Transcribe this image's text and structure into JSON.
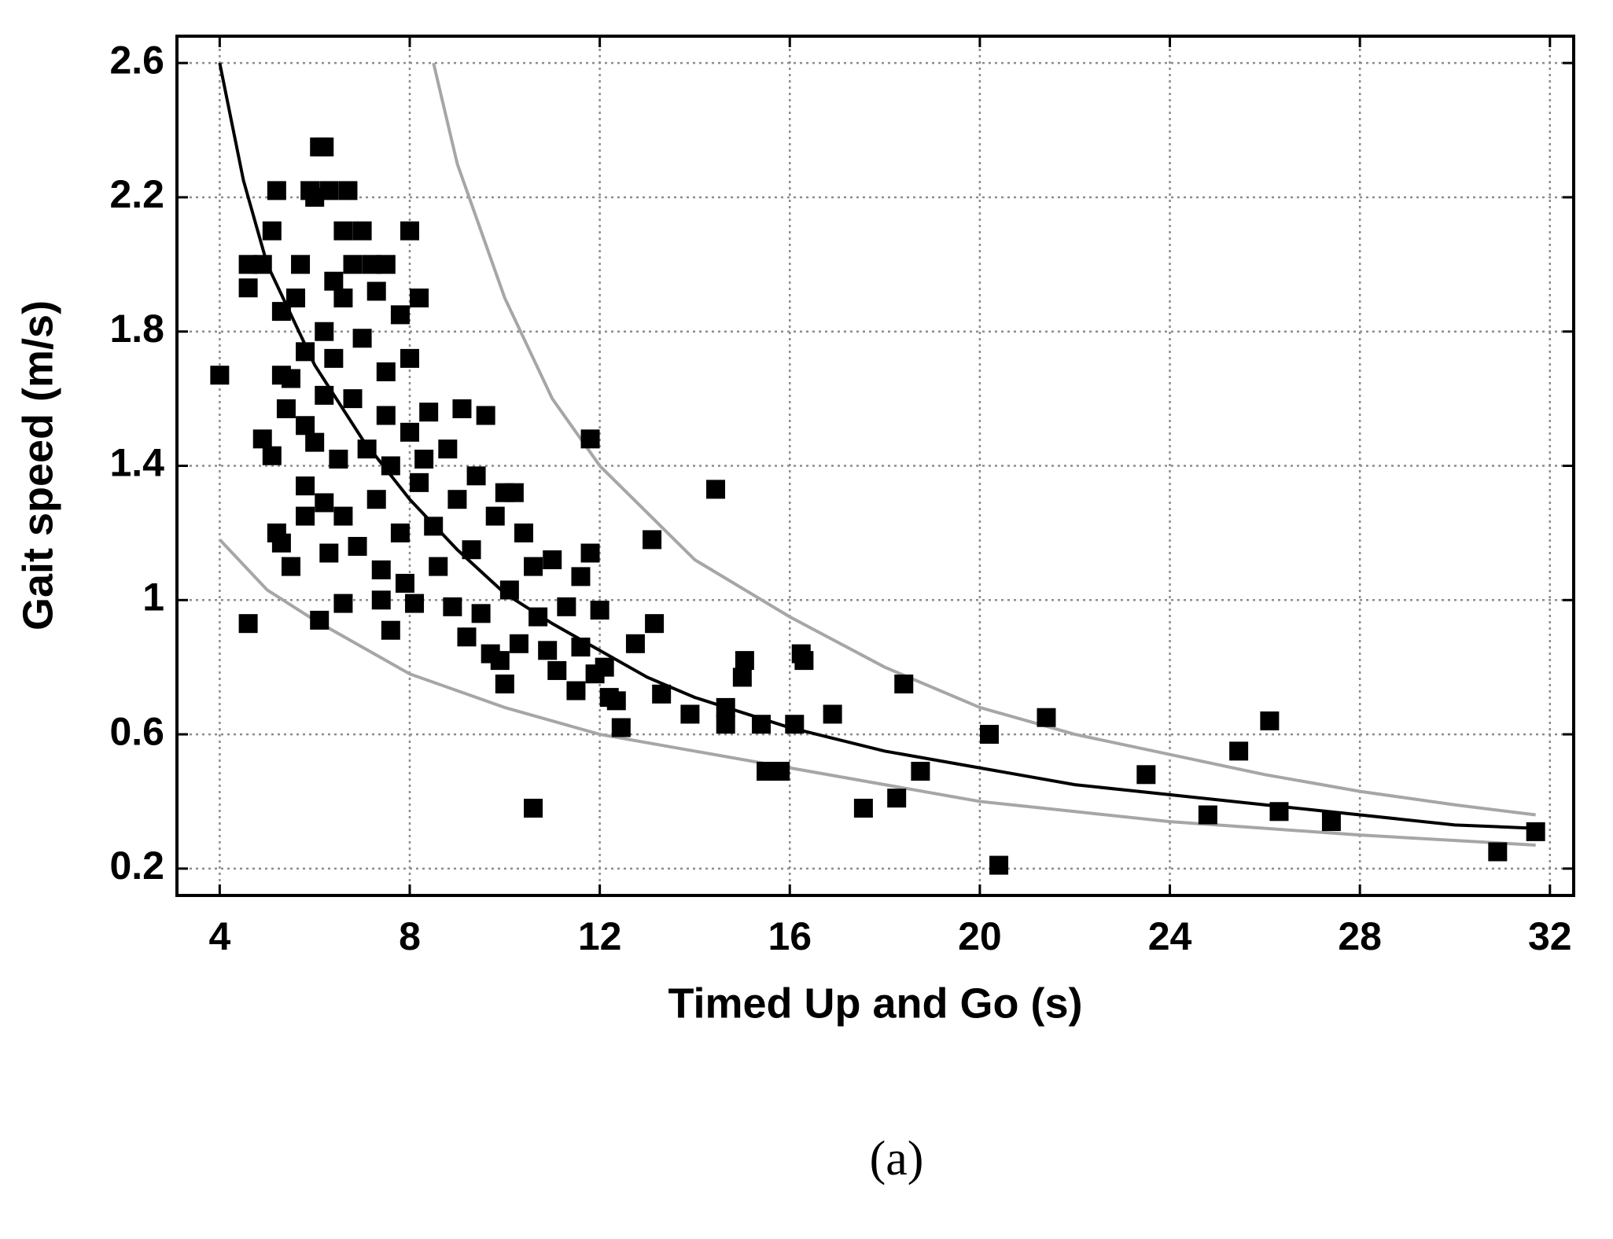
{
  "chart_data": {
    "type": "scatter",
    "xlabel": "Timed Up and Go (s)",
    "ylabel": "Gait speed (m/s)",
    "caption": "(a)",
    "xlim": [
      3.1,
      32.5
    ],
    "ylim": [
      0.12,
      2.68
    ],
    "xticks": [
      4,
      8,
      12,
      16,
      20,
      24,
      28,
      32
    ],
    "yticks": [
      0.2,
      0.6,
      1,
      1.4,
      1.8,
      2.2,
      2.6
    ],
    "grid": true,
    "series": [
      {
        "type": "scatter",
        "marker": "square",
        "color": "#000000",
        "x": [
          4,
          4.6,
          4.6,
          4.6,
          4.9,
          4.9,
          5.1,
          5.1,
          5.2,
          5.2,
          5.3,
          5.3,
          5.3,
          5.4,
          5.5,
          5.5,
          5.6,
          5.7,
          5.8,
          5.8,
          5.8,
          5.8,
          5.9,
          6.0,
          6.0,
          6.1,
          6.2,
          6.2,
          6.2,
          6.2,
          6.3,
          6.3,
          6.4,
          6.4,
          6.1,
          6.5,
          6.6,
          6.6,
          6.6,
          6.7,
          6.8,
          6.8,
          6.9,
          7.0,
          7.0,
          7.1,
          6.6,
          7.2,
          7.3,
          7.3,
          7.4,
          7.5,
          7.5,
          7.5,
          7.4,
          7.6,
          8.0,
          7.8,
          7.8,
          7.9,
          8.0,
          8.0,
          8.1,
          8.2,
          8.2,
          7.6,
          8.4,
          8.5,
          8.6,
          8.3,
          8.8,
          8.9,
          9.0,
          9.1,
          9.2,
          9.3,
          9.4,
          9.5,
          9.6,
          9.7,
          9.8,
          9.9,
          10.0,
          10.1,
          10.2,
          10.3,
          10.4,
          10.0,
          10.6,
          10.7,
          10.9,
          11.0,
          11.1,
          11.3,
          11.5,
          11.6,
          11.8,
          11.9,
          12.0,
          11.6,
          12.2,
          11.8,
          12.1,
          12.75,
          12.35,
          12.45,
          13.15,
          13.1,
          13.3,
          13.9,
          14.44,
          14.65,
          14.65,
          15.0,
          15.05,
          15.4,
          15.5,
          15.8,
          16.1,
          16.24,
          16.3,
          16.9,
          10.6,
          17.55,
          18.25,
          18.4,
          18.75,
          20.2,
          20.4,
          21.4,
          23.5,
          24.8,
          25.45,
          26.1,
          26.3,
          27.4,
          30.9,
          31.7
        ],
        "values": [
          1.67,
          0.93,
          1.93,
          2.0,
          2.0,
          1.48,
          2.1,
          1.43,
          2.22,
          1.2,
          1.17,
          1.86,
          1.67,
          1.57,
          1.66,
          1.1,
          1.9,
          2.0,
          1.74,
          1.52,
          1.34,
          1.25,
          2.22,
          2.2,
          1.47,
          2.35,
          2.35,
          1.8,
          1.61,
          1.29,
          2.22,
          1.14,
          1.95,
          1.72,
          0.94,
          1.42,
          2.1,
          1.9,
          1.25,
          2.22,
          2.0,
          1.6,
          1.16,
          2.1,
          1.78,
          1.45,
          0.99,
          2.0,
          1.92,
          1.3,
          1.09,
          2.0,
          1.68,
          1.55,
          1.0,
          0.91,
          2.1,
          1.85,
          1.2,
          1.05,
          1.72,
          1.5,
          0.99,
          1.9,
          1.35,
          1.4,
          1.56,
          1.22,
          1.1,
          1.42,
          1.45,
          0.98,
          1.3,
          1.57,
          0.89,
          1.15,
          1.37,
          0.96,
          1.55,
          0.84,
          1.25,
          0.82,
          1.32,
          1.03,
          1.32,
          0.87,
          1.2,
          0.75,
          1.1,
          0.95,
          0.85,
          1.12,
          0.79,
          0.98,
          0.73,
          0.86,
          1.14,
          0.78,
          0.97,
          1.07,
          0.71,
          1.48,
          0.8,
          0.87,
          0.7,
          0.62,
          0.93,
          1.18,
          0.72,
          0.66,
          1.33,
          0.68,
          0.63,
          0.77,
          0.82,
          0.63,
          0.49,
          0.49,
          0.63,
          0.84,
          0.82,
          0.66,
          0.38,
          0.38,
          0.41,
          0.75,
          0.49,
          0.6,
          0.21,
          0.65,
          0.48,
          0.36,
          0.55,
          0.64,
          0.37,
          0.34,
          0.25,
          0.31
        ]
      },
      {
        "type": "line",
        "color": "#000000",
        "x": [
          4,
          4.5,
          5,
          5.5,
          6,
          7,
          8,
          9,
          10,
          11,
          12,
          13,
          14,
          16,
          18,
          20,
          22,
          24,
          26,
          28,
          30,
          31.7
        ],
        "values": [
          2.6,
          2.25,
          2.0,
          1.85,
          1.7,
          1.48,
          1.3,
          1.15,
          1.02,
          0.93,
          0.85,
          0.77,
          0.71,
          0.62,
          0.55,
          0.5,
          0.45,
          0.42,
          0.39,
          0.36,
          0.33,
          0.32
        ]
      },
      {
        "type": "line",
        "color": "#a6a6a6",
        "x": [
          8.5,
          9,
          10,
          11,
          12,
          14,
          16,
          18,
          20,
          22,
          24,
          26,
          28,
          30,
          31.7
        ],
        "values": [
          2.6,
          2.3,
          1.9,
          1.6,
          1.4,
          1.12,
          0.95,
          0.8,
          0.68,
          0.6,
          0.54,
          0.48,
          0.43,
          0.39,
          0.36
        ]
      },
      {
        "type": "line",
        "color": "#a6a6a6",
        "x": [
          4,
          5,
          6,
          8,
          10,
          12,
          14,
          16,
          18,
          20,
          22,
          24,
          26,
          28,
          31.7
        ],
        "values": [
          1.18,
          1.03,
          0.94,
          0.78,
          0.68,
          0.6,
          0.55,
          0.5,
          0.45,
          0.4,
          0.37,
          0.34,
          0.32,
          0.3,
          0.27
        ]
      }
    ]
  }
}
